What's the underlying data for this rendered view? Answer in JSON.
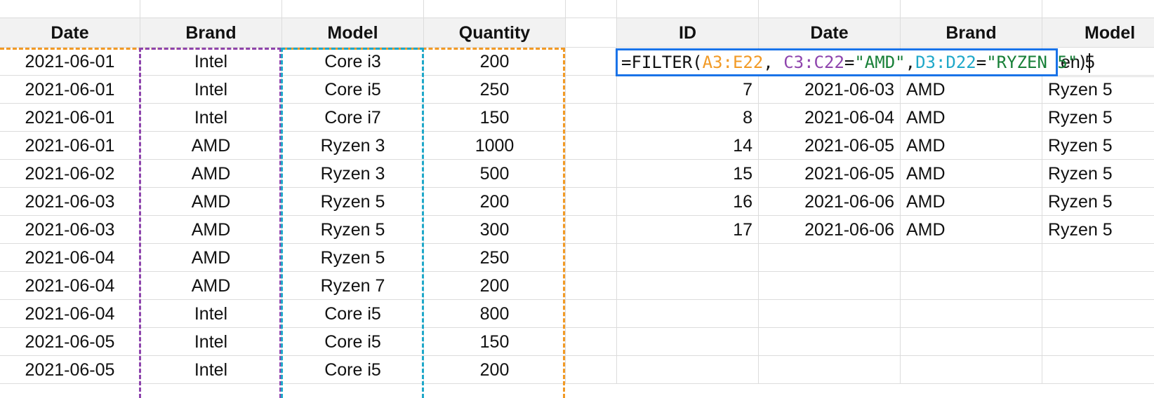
{
  "left_table": {
    "headers": [
      "Date",
      "Brand",
      "Model",
      "Quantity"
    ],
    "rows": [
      [
        "2021-06-01",
        "Intel",
        "Core i3",
        "200"
      ],
      [
        "2021-06-01",
        "Intel",
        "Core i5",
        "250"
      ],
      [
        "2021-06-01",
        "Intel",
        "Core i7",
        "150"
      ],
      [
        "2021-06-01",
        "AMD",
        "Ryzen 3",
        "1000"
      ],
      [
        "2021-06-02",
        "AMD",
        "Ryzen 3",
        "500"
      ],
      [
        "2021-06-03",
        "AMD",
        "Ryzen 5",
        "200"
      ],
      [
        "2021-06-03",
        "AMD",
        "Ryzen 5",
        "300"
      ],
      [
        "2021-06-04",
        "AMD",
        "Ryzen 5",
        "250"
      ],
      [
        "2021-06-04",
        "AMD",
        "Ryzen 7",
        "200"
      ],
      [
        "2021-06-04",
        "Intel",
        "Core i5",
        "800"
      ],
      [
        "2021-06-05",
        "Intel",
        "Core i5",
        "150"
      ],
      [
        "2021-06-05",
        "Intel",
        "Core i5",
        "200"
      ]
    ]
  },
  "right_table": {
    "headers": [
      "ID",
      "Date",
      "Brand",
      "Model"
    ],
    "first_row_visible_model": "en 5",
    "rows": [
      [
        "7",
        "2021-06-03",
        "AMD",
        "Ryzen 5"
      ],
      [
        "8",
        "2021-06-04",
        "AMD",
        "Ryzen 5"
      ],
      [
        "14",
        "2021-06-05",
        "AMD",
        "Ryzen 5"
      ],
      [
        "15",
        "2021-06-05",
        "AMD",
        "Ryzen 5"
      ],
      [
        "16",
        "2021-06-06",
        "AMD",
        "Ryzen 5"
      ],
      [
        "17",
        "2021-06-06",
        "AMD",
        "Ryzen 5"
      ]
    ]
  },
  "formula": {
    "prefix": "=FILTER(",
    "range1": "A3:E22",
    "sep1": ", ",
    "range2": "C3:C22",
    "eq1": "=",
    "str1": "\"AMD\"",
    "sep2": ",",
    "range3": "D3:D22",
    "eq2": "=",
    "str2": "\"RYZEN 5\"",
    "suffix": ")"
  },
  "colors": {
    "range1": "#f29a25",
    "range2": "#8e44ad",
    "range3": "#1fa8c9",
    "string": "#188038",
    "active_border": "#1a73e8",
    "header_bg": "#f2f2f2"
  }
}
